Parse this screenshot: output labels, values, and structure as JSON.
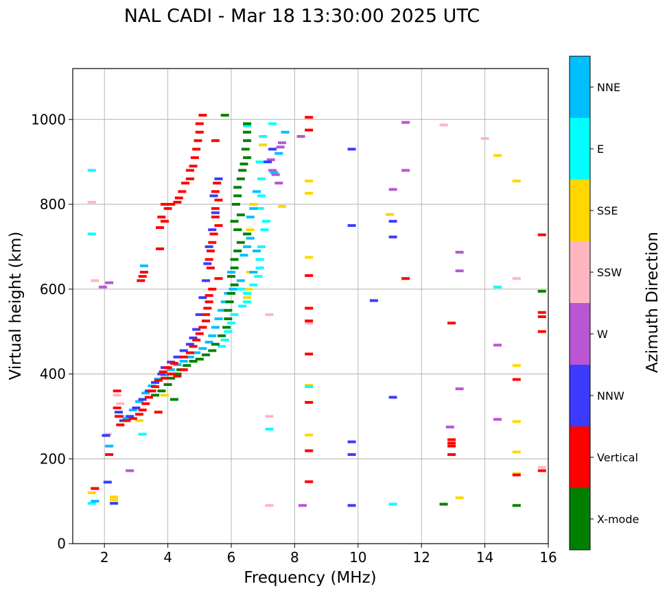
{
  "chart_data": {
    "type": "scatter",
    "title": "NAL CADI - Mar 18 13:30:00 2025 UTC",
    "xlabel": "Frequency (MHz)",
    "ylabel": "Virtual height (km)",
    "xlim": [
      1,
      16
    ],
    "ylim": [
      0,
      1120
    ],
    "xticks": [
      2,
      4,
      6,
      8,
      10,
      12,
      14,
      16
    ],
    "xtick_labels": [
      "2",
      "4",
      "6",
      "8",
      "10",
      "12",
      "14",
      "16"
    ],
    "yticks": [
      0,
      200,
      400,
      600,
      800,
      1000
    ],
    "ytick_labels": [
      "0",
      "200",
      "400",
      "600",
      "800",
      "1000"
    ],
    "grid": true,
    "colorbar": {
      "label": "Azimuth Direction",
      "categories": [
        {
          "name": "X-mode",
          "color": "#008000"
        },
        {
          "name": "Vertical",
          "color": "#ff0000"
        },
        {
          "name": "NNW",
          "color": "#3b3bff"
        },
        {
          "name": "W",
          "color": "#ba55d3"
        },
        {
          "name": "SSW",
          "color": "#ffb6c1"
        },
        {
          "name": "SSE",
          "color": "#ffd700"
        },
        {
          "name": "E",
          "color": "#00ffff"
        },
        {
          "name": "NNE",
          "color": "#00bfff"
        }
      ]
    },
    "series": [
      {
        "name": "Vertical",
        "points": [
          [
            5.1,
            1010
          ],
          [
            5.0,
            990
          ],
          [
            5.0,
            970
          ],
          [
            4.95,
            950
          ],
          [
            4.9,
            930
          ],
          [
            4.85,
            910
          ],
          [
            4.8,
            890
          ],
          [
            4.7,
            880
          ],
          [
            4.7,
            860
          ],
          [
            4.55,
            850
          ],
          [
            4.45,
            830
          ],
          [
            4.35,
            815
          ],
          [
            4.3,
            805
          ],
          [
            4.1,
            800
          ],
          [
            4.0,
            790
          ],
          [
            3.9,
            800
          ],
          [
            3.8,
            770
          ],
          [
            3.9,
            760
          ],
          [
            3.75,
            745
          ],
          [
            3.75,
            695
          ],
          [
            3.25,
            640
          ],
          [
            3.2,
            630
          ],
          [
            3.15,
            620
          ],
          [
            5.5,
            950
          ],
          [
            5.55,
            850
          ],
          [
            5.5,
            830
          ],
          [
            5.6,
            810
          ],
          [
            5.5,
            790
          ],
          [
            5.5,
            770
          ],
          [
            5.6,
            750
          ],
          [
            5.45,
            730
          ],
          [
            5.4,
            710
          ],
          [
            5.35,
            690
          ],
          [
            5.3,
            670
          ],
          [
            5.35,
            650
          ],
          [
            5.6,
            625
          ],
          [
            5.4,
            600
          ],
          [
            5.3,
            585
          ],
          [
            5.3,
            570
          ],
          [
            5.25,
            555
          ],
          [
            5.2,
            540
          ],
          [
            5.2,
            525
          ],
          [
            5.1,
            510
          ],
          [
            5.0,
            495
          ],
          [
            4.9,
            480
          ],
          [
            4.8,
            465
          ],
          [
            4.7,
            450
          ],
          [
            4.5,
            440
          ],
          [
            4.2,
            425
          ],
          [
            4.0,
            415
          ],
          [
            3.85,
            405
          ],
          [
            3.9,
            390
          ],
          [
            4.1,
            400
          ],
          [
            4.3,
            395
          ],
          [
            4.5,
            410
          ],
          [
            3.7,
            385
          ],
          [
            3.6,
            370
          ],
          [
            3.5,
            360
          ],
          [
            3.4,
            345
          ],
          [
            3.3,
            330
          ],
          [
            3.2,
            315
          ],
          [
            3.1,
            305
          ],
          [
            2.9,
            295
          ],
          [
            2.7,
            290
          ],
          [
            2.5,
            280
          ],
          [
            2.45,
            300
          ],
          [
            2.4,
            320
          ],
          [
            2.4,
            360
          ],
          [
            3.7,
            310
          ],
          [
            8.45,
            1005
          ],
          [
            8.45,
            975
          ],
          [
            8.45,
            632
          ],
          [
            8.45,
            555
          ],
          [
            8.45,
            525
          ],
          [
            8.45,
            447
          ],
          [
            8.45,
            333
          ],
          [
            8.45,
            219
          ],
          [
            8.45,
            146
          ],
          [
            11.5,
            625
          ],
          [
            12.95,
            520
          ],
          [
            12.95,
            245
          ],
          [
            12.95,
            237
          ],
          [
            12.95,
            230
          ],
          [
            12.95,
            210
          ],
          [
            15.0,
            387
          ],
          [
            15.0,
            162
          ],
          [
            15.8,
            728
          ],
          [
            15.8,
            545
          ],
          [
            15.8,
            535
          ],
          [
            15.8,
            500
          ],
          [
            15.8,
            172
          ],
          [
            1.7,
            130
          ],
          [
            2.15,
            210
          ]
        ]
      },
      {
        "name": "X-mode",
        "points": [
          [
            5.8,
            1010
          ],
          [
            6.5,
            990
          ],
          [
            6.5,
            970
          ],
          [
            6.5,
            950
          ],
          [
            6.45,
            930
          ],
          [
            6.5,
            910
          ],
          [
            6.4,
            895
          ],
          [
            6.35,
            880
          ],
          [
            6.3,
            860
          ],
          [
            6.2,
            840
          ],
          [
            6.2,
            820
          ],
          [
            6.15,
            800
          ],
          [
            6.3,
            775
          ],
          [
            6.1,
            760
          ],
          [
            6.2,
            740
          ],
          [
            6.5,
            730
          ],
          [
            6.3,
            710
          ],
          [
            6.2,
            690
          ],
          [
            6.1,
            670
          ],
          [
            6.1,
            650
          ],
          [
            6.0,
            630
          ],
          [
            6.1,
            610
          ],
          [
            6.0,
            590
          ],
          [
            5.95,
            570
          ],
          [
            5.9,
            550
          ],
          [
            5.9,
            530
          ],
          [
            5.85,
            510
          ],
          [
            5.7,
            490
          ],
          [
            5.5,
            470
          ],
          [
            5.4,
            455
          ],
          [
            5.2,
            445
          ],
          [
            5.0,
            435
          ],
          [
            4.8,
            430
          ],
          [
            4.6,
            420
          ],
          [
            4.4,
            410
          ],
          [
            4.3,
            400
          ],
          [
            4.1,
            390
          ],
          [
            4.0,
            375
          ],
          [
            3.8,
            360
          ],
          [
            3.6,
            350
          ],
          [
            12.7,
            93
          ],
          [
            15.0,
            90
          ],
          [
            15.8,
            595
          ],
          [
            4.2,
            340
          ]
        ]
      },
      {
        "name": "NNW",
        "points": [
          [
            5.6,
            860
          ],
          [
            5.45,
            820
          ],
          [
            5.5,
            780
          ],
          [
            5.4,
            740
          ],
          [
            5.3,
            700
          ],
          [
            5.25,
            660
          ],
          [
            5.2,
            620
          ],
          [
            5.1,
            580
          ],
          [
            5.0,
            540
          ],
          [
            4.9,
            505
          ],
          [
            4.8,
            485
          ],
          [
            4.7,
            470
          ],
          [
            4.5,
            455
          ],
          [
            4.3,
            440
          ],
          [
            4.1,
            428
          ],
          [
            3.9,
            415
          ],
          [
            3.8,
            400
          ],
          [
            3.6,
            380
          ],
          [
            3.4,
            360
          ],
          [
            3.2,
            340
          ],
          [
            3.0,
            320
          ],
          [
            2.8,
            300
          ],
          [
            2.6,
            290
          ],
          [
            2.45,
            310
          ],
          [
            2.05,
            255
          ],
          [
            1.7,
            130
          ],
          [
            7.3,
            930
          ],
          [
            7.15,
            900
          ],
          [
            9.8,
            930
          ],
          [
            9.8,
            750
          ],
          [
            10.5,
            573
          ],
          [
            11.1,
            760
          ],
          [
            11.1,
            723
          ],
          [
            11.1,
            345
          ],
          [
            9.8,
            240
          ],
          [
            9.8,
            210
          ],
          [
            9.8,
            90
          ],
          [
            2.3,
            95
          ],
          [
            2.1,
            145
          ]
        ]
      },
      {
        "name": "W",
        "points": [
          [
            7.5,
            850
          ],
          [
            7.4,
            870
          ],
          [
            7.3,
            880
          ],
          [
            7.25,
            905
          ],
          [
            7.55,
            935
          ],
          [
            7.6,
            945
          ],
          [
            8.2,
            960
          ],
          [
            11.5,
            993
          ],
          [
            11.1,
            835
          ],
          [
            11.5,
            880
          ],
          [
            13.2,
            687
          ],
          [
            13.2,
            643
          ],
          [
            13.2,
            365
          ],
          [
            12.9,
            275
          ],
          [
            14.4,
            468
          ],
          [
            14.4,
            293
          ],
          [
            8.25,
            90
          ],
          [
            2.8,
            172
          ],
          [
            1.95,
            605
          ],
          [
            2.15,
            615
          ]
        ]
      },
      {
        "name": "SSW",
        "points": [
          [
            12.7,
            987
          ],
          [
            14.0,
            955
          ],
          [
            15.0,
            625
          ],
          [
            15.8,
            180
          ],
          [
            8.45,
            520
          ],
          [
            7.2,
            300
          ],
          [
            7.2,
            90
          ],
          [
            7.2,
            540
          ],
          [
            2.4,
            350
          ],
          [
            2.5,
            330
          ],
          [
            2.1,
            258
          ],
          [
            1.6,
            805
          ],
          [
            1.7,
            620
          ]
        ]
      },
      {
        "name": "SSE",
        "points": [
          [
            7.6,
            795
          ],
          [
            8.45,
            855
          ],
          [
            8.45,
            826
          ],
          [
            8.45,
            675
          ],
          [
            8.45,
            373
          ],
          [
            8.45,
            256
          ],
          [
            11.0,
            776
          ],
          [
            13.2,
            108
          ],
          [
            14.4,
            915
          ],
          [
            15.0,
            855
          ],
          [
            15.0,
            420
          ],
          [
            15.0,
            288
          ],
          [
            15.0,
            216
          ],
          [
            15.0,
            165
          ],
          [
            6.6,
            640
          ],
          [
            6.5,
            580
          ],
          [
            6.55,
            600
          ],
          [
            6.6,
            740
          ],
          [
            7.0,
            940
          ],
          [
            2.3,
            110
          ],
          [
            2.3,
            103
          ],
          [
            1.6,
            120
          ],
          [
            3.1,
            290
          ],
          [
            3.9,
            350
          ],
          [
            6.7,
            800
          ]
        ]
      },
      {
        "name": "E",
        "points": [
          [
            6.5,
            985
          ],
          [
            7.3,
            990
          ],
          [
            7.0,
            960
          ],
          [
            6.9,
            900
          ],
          [
            6.95,
            860
          ],
          [
            6.95,
            820
          ],
          [
            6.9,
            790
          ],
          [
            7.1,
            760
          ],
          [
            7.05,
            740
          ],
          [
            6.95,
            700
          ],
          [
            6.9,
            670
          ],
          [
            6.9,
            650
          ],
          [
            6.85,
            630
          ],
          [
            6.7,
            610
          ],
          [
            6.5,
            590
          ],
          [
            6.3,
            600
          ],
          [
            6.5,
            570
          ],
          [
            6.35,
            560
          ],
          [
            6.1,
            540
          ],
          [
            6.0,
            520
          ],
          [
            5.9,
            500
          ],
          [
            5.8,
            480
          ],
          [
            5.7,
            465
          ],
          [
            8.45,
            370
          ],
          [
            11.1,
            93
          ],
          [
            14.4,
            605
          ],
          [
            7.2,
            270
          ],
          [
            1.6,
            880
          ],
          [
            1.6,
            730
          ],
          [
            3.2,
            258
          ],
          [
            1.6,
            95
          ]
        ]
      },
      {
        "name": "NNE",
        "points": [
          [
            7.7,
            970
          ],
          [
            7.5,
            920
          ],
          [
            7.35,
            875
          ],
          [
            6.8,
            830
          ],
          [
            6.7,
            790
          ],
          [
            6.6,
            770
          ],
          [
            6.6,
            720
          ],
          [
            6.5,
            700
          ],
          [
            6.4,
            680
          ],
          [
            6.8,
            690
          ],
          [
            6.7,
            640
          ],
          [
            6.3,
            620
          ],
          [
            6.1,
            610
          ],
          [
            5.9,
            590
          ],
          [
            5.8,
            570
          ],
          [
            5.7,
            550
          ],
          [
            5.6,
            530
          ],
          [
            5.5,
            510
          ],
          [
            5.4,
            490
          ],
          [
            5.3,
            475
          ],
          [
            5.1,
            460
          ],
          [
            4.9,
            450
          ],
          [
            4.7,
            440
          ],
          [
            4.5,
            430
          ],
          [
            4.3,
            422
          ],
          [
            4.1,
            410
          ],
          [
            3.9,
            398
          ],
          [
            3.7,
            388
          ],
          [
            3.5,
            372
          ],
          [
            3.3,
            355
          ],
          [
            3.1,
            335
          ],
          [
            2.9,
            315
          ],
          [
            2.7,
            295
          ],
          [
            2.5,
            300
          ],
          [
            3.25,
            655
          ],
          [
            2.15,
            230
          ],
          [
            1.7,
            100
          ],
          [
            6.05,
            600
          ],
          [
            6.0,
            640
          ]
        ]
      }
    ]
  }
}
